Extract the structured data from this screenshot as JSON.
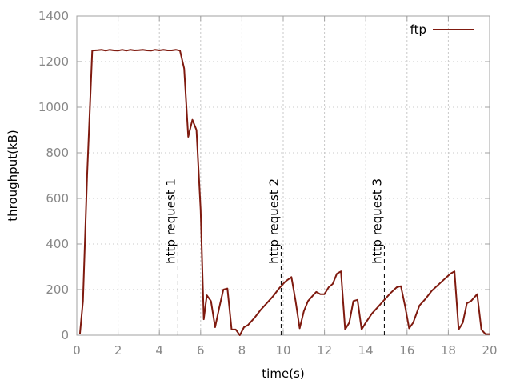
{
  "chart_data": {
    "type": "line",
    "title": "",
    "xlabel": "time(s)",
    "ylabel": "throughput(kB)",
    "xlim": [
      0,
      20
    ],
    "ylim": [
      0,
      1400
    ],
    "x_ticks": [
      0,
      2,
      4,
      6,
      8,
      10,
      12,
      14,
      16,
      18,
      20
    ],
    "y_ticks": [
      0,
      200,
      400,
      600,
      800,
      1000,
      1200,
      1400
    ],
    "grid": true,
    "legend_position": "top-right",
    "series": [
      {
        "name": "ftp",
        "color": "#7f1a0f",
        "x": [
          0.15,
          0.3,
          0.5,
          0.75,
          1.0,
          1.2,
          1.4,
          1.6,
          1.8,
          2.0,
          2.2,
          2.4,
          2.6,
          2.8,
          3.0,
          3.2,
          3.4,
          3.6,
          3.8,
          4.0,
          4.2,
          4.4,
          4.6,
          4.8,
          5.0,
          5.2,
          5.4,
          5.6,
          5.8,
          6.0,
          6.15,
          6.3,
          6.5,
          6.7,
          6.9,
          7.1,
          7.3,
          7.5,
          7.7,
          7.9,
          8.1,
          8.3,
          8.6,
          8.9,
          9.2,
          9.5,
          9.8,
          10.1,
          10.4,
          10.6,
          10.8,
          11.0,
          11.2,
          11.4,
          11.6,
          11.8,
          12.0,
          12.2,
          12.4,
          12.6,
          12.8,
          13.0,
          13.2,
          13.4,
          13.6,
          13.8,
          14.0,
          14.3,
          14.6,
          14.9,
          15.2,
          15.5,
          15.7,
          15.9,
          16.1,
          16.3,
          16.6,
          16.9,
          17.2,
          17.5,
          17.8,
          18.1,
          18.3,
          18.5,
          18.7,
          18.9,
          19.1,
          19.4,
          19.6,
          19.8,
          20.0
        ],
        "y": [
          5,
          150,
          700,
          1248,
          1250,
          1252,
          1248,
          1252,
          1249,
          1248,
          1252,
          1248,
          1252,
          1249,
          1250,
          1252,
          1249,
          1248,
          1252,
          1249,
          1252,
          1249,
          1249,
          1252,
          1248,
          1170,
          870,
          945,
          900,
          550,
          70,
          175,
          150,
          35,
          120,
          200,
          205,
          25,
          25,
          0,
          35,
          45,
          75,
          110,
          140,
          170,
          205,
          235,
          255,
          150,
          30,
          105,
          150,
          170,
          190,
          180,
          180,
          210,
          225,
          270,
          280,
          25,
          55,
          150,
          155,
          25,
          55,
          95,
          125,
          155,
          185,
          210,
          215,
          130,
          30,
          55,
          130,
          160,
          195,
          220,
          245,
          270,
          280,
          25,
          55,
          140,
          150,
          180,
          25,
          5,
          5
        ]
      }
    ],
    "annotations": [
      {
        "label": "http request 1",
        "x": 4.9,
        "y_from": 0,
        "y_to": 390
      },
      {
        "label": "http request 2",
        "x": 9.9,
        "y_from": 0,
        "y_to": 390
      },
      {
        "label": "http request 3",
        "x": 14.9,
        "y_from": 0,
        "y_to": 390
      }
    ]
  }
}
